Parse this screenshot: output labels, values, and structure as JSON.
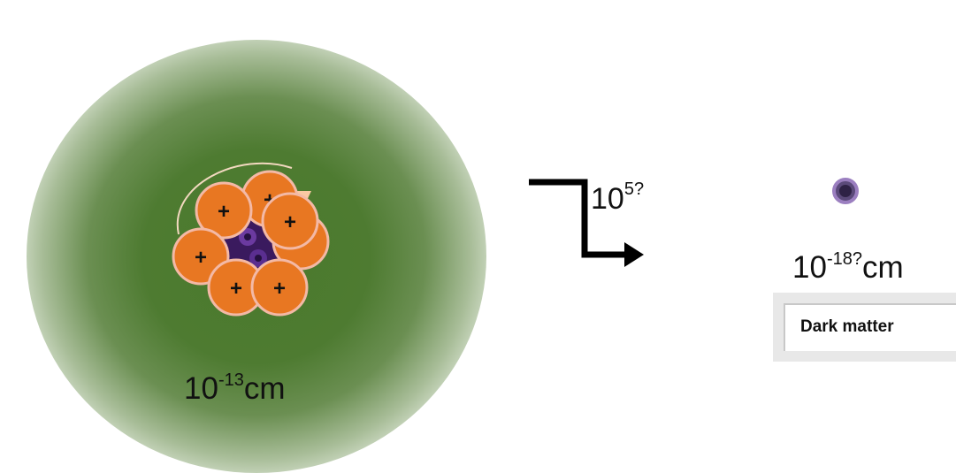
{
  "atom": {
    "size_base": "10",
    "size_exp": "-13",
    "size_unit": "cm",
    "proton_symbol": "+"
  },
  "scale_step": {
    "base": "10",
    "exp": "5?"
  },
  "quark": {
    "size_base": "10",
    "size_exp": "-18?",
    "size_unit": "cm"
  },
  "dark_matter_label": "Dark matter",
  "colors": {
    "cloud_green": "#4e7b31",
    "proton_fill": "#e87722",
    "proton_ring": "#f3b9a6",
    "core_purple": "#3a1a5e",
    "quark_fill": "#5b4a7a",
    "quark_ring": "#9b7fc0",
    "arrow_tip": "#f9c9a3"
  }
}
